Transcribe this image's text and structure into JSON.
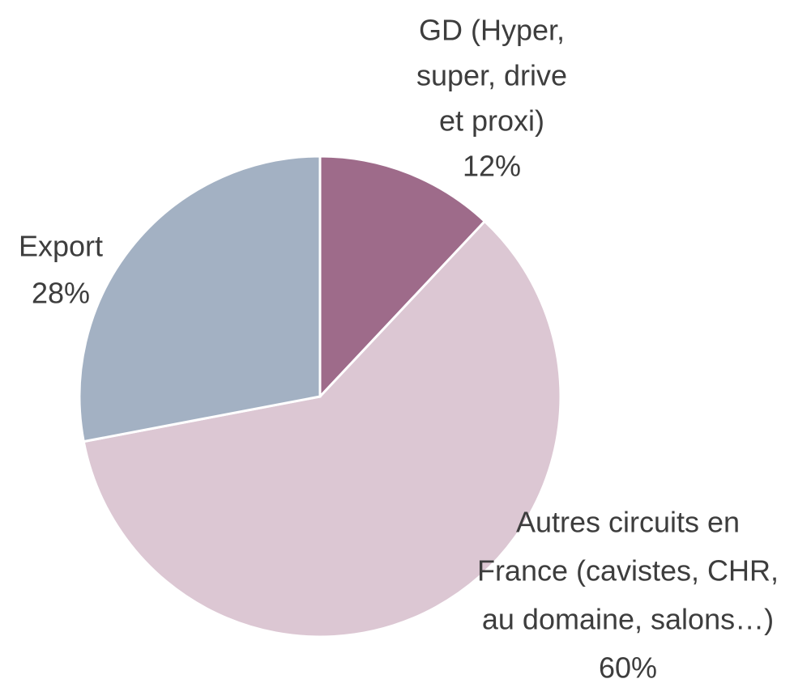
{
  "chart_data": {
    "type": "pie",
    "categories": [
      [
        "GD (Hyper,",
        "super, drive",
        "et proxi)"
      ],
      [
        "Autres circuits en",
        "France (cavistes, CHR,",
        "au domaine, salons…)"
      ],
      [
        "Export"
      ]
    ],
    "values": [
      12,
      60,
      28
    ],
    "value_labels": [
      "12%",
      "60%",
      "28%"
    ],
    "colors": [
      "#9e6b8a",
      "#dcc7d3",
      "#a3b1c3"
    ]
  }
}
